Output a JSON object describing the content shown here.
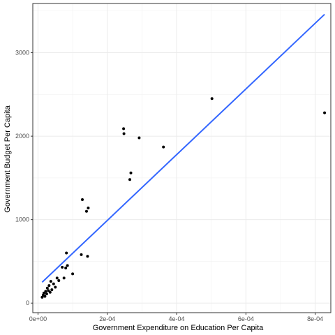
{
  "chart_data": {
    "type": "scatter",
    "title": "",
    "xlabel": "Government Expenditure on Education Per Capita",
    "ylabel": "Government Budget Per Capita",
    "xlim": [
      -1.5e-05,
      0.000845
    ],
    "ylim": [
      -115,
      3590
    ],
    "x_ticks": [
      0,
      0.0002,
      0.0004,
      0.0006,
      0.0008
    ],
    "x_tick_labels": [
      "0e+00",
      "2e-04",
      "4e-04",
      "6e-04",
      "8e-04"
    ],
    "y_ticks": [
      0,
      1000,
      2000,
      3000
    ],
    "y_tick_labels": [
      "0",
      "1000",
      "2000",
      "3000"
    ],
    "grid": true,
    "legend": "none",
    "point_color": "#000000",
    "line_color": "#3366ff",
    "points": [
      {
        "x": 1.2e-05,
        "y": 70
      },
      {
        "x": 1.5e-05,
        "y": 95
      },
      {
        "x": 1.7e-05,
        "y": 120
      },
      {
        "x": 2e-05,
        "y": 80
      },
      {
        "x": 2.2e-05,
        "y": 140
      },
      {
        "x": 2.5e-05,
        "y": 110
      },
      {
        "x": 2.7e-05,
        "y": 180
      },
      {
        "x": 3e-05,
        "y": 150
      },
      {
        "x": 3.2e-05,
        "y": 210
      },
      {
        "x": 3.5e-05,
        "y": 130
      },
      {
        "x": 3.7e-05,
        "y": 260
      },
      {
        "x": 4e-05,
        "y": 160
      },
      {
        "x": 4.5e-05,
        "y": 230
      },
      {
        "x": 5e-05,
        "y": 190
      },
      {
        "x": 5.5e-05,
        "y": 300
      },
      {
        "x": 6e-05,
        "y": 270
      },
      {
        "x": 7e-05,
        "y": 430
      },
      {
        "x": 7.5e-05,
        "y": 300
      },
      {
        "x": 8e-05,
        "y": 420
      },
      {
        "x": 8.2e-05,
        "y": 600
      },
      {
        "x": 8.5e-05,
        "y": 450
      },
      {
        "x": 0.0001,
        "y": 350
      },
      {
        "x": 0.000125,
        "y": 580
      },
      {
        "x": 0.000128,
        "y": 1240
      },
      {
        "x": 0.00014,
        "y": 1100
      },
      {
        "x": 0.000143,
        "y": 560
      },
      {
        "x": 0.000145,
        "y": 1140
      },
      {
        "x": 0.000247,
        "y": 2090
      },
      {
        "x": 0.000248,
        "y": 2030
      },
      {
        "x": 0.000265,
        "y": 1480
      },
      {
        "x": 0.000268,
        "y": 1560
      },
      {
        "x": 0.000292,
        "y": 1980
      },
      {
        "x": 0.000362,
        "y": 1870
      },
      {
        "x": 0.000502,
        "y": 2450
      },
      {
        "x": 0.000827,
        "y": 2280
      }
    ],
    "fit_line": {
      "x": [
        1.2e-05,
        0.000827
      ],
      "y": [
        250,
        3460
      ]
    }
  }
}
